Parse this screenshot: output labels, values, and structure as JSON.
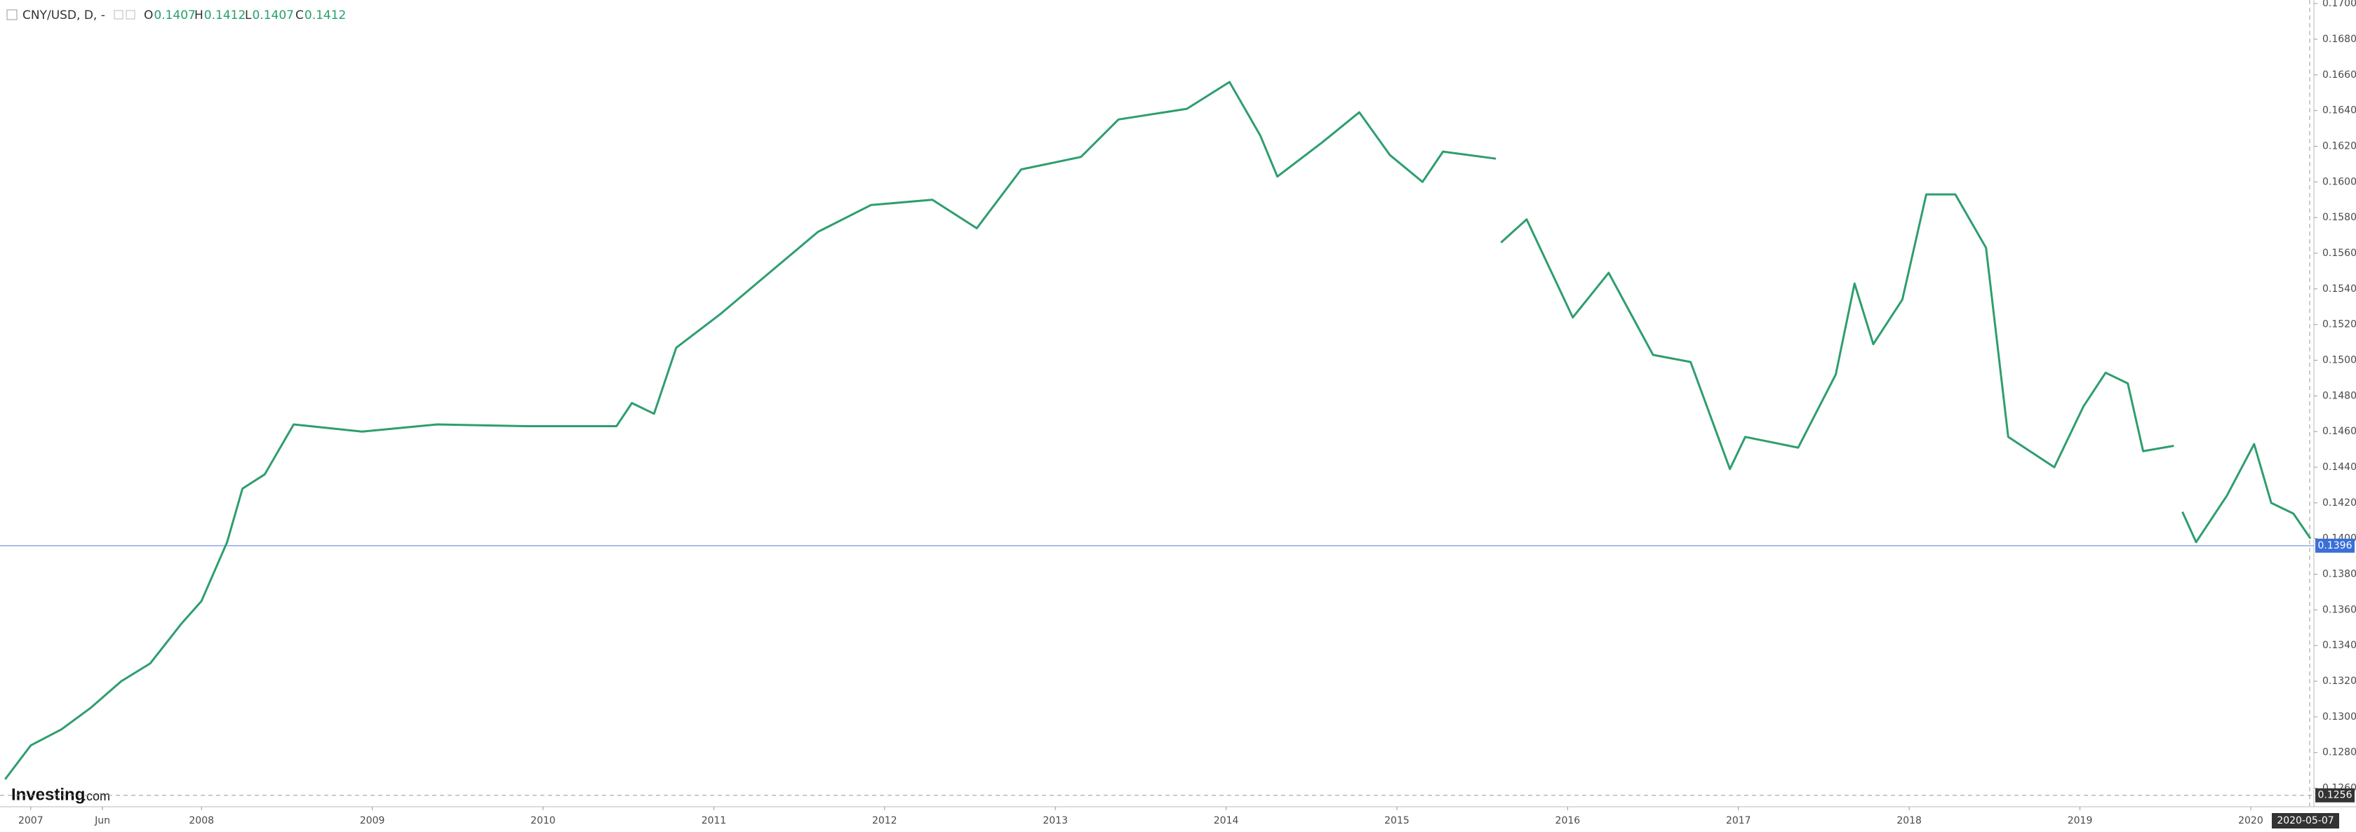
{
  "chart_data": {
    "type": "line",
    "title": "CNY/USD, D, -",
    "ohlc": [
      {
        "label": "O",
        "value": 0.1407
      },
      {
        "label": "H",
        "value": 0.1412
      },
      {
        "label": "L",
        "value": 0.1407
      },
      {
        "label": "C",
        "value": 0.1412
      }
    ],
    "x": [
      2006.85,
      2007.0,
      2007.18,
      2007.35,
      2007.53,
      2007.7,
      2007.88,
      2008.0,
      2008.15,
      2008.24,
      2008.37,
      2008.54,
      2008.94,
      2009.38,
      2009.9,
      2010.43,
      2010.52,
      2010.65,
      2010.78,
      2011.04,
      2011.3,
      2011.61,
      2011.92,
      2012.28,
      2012.54,
      2012.8,
      2013.15,
      2013.37,
      2013.77,
      2014.02,
      2014.2,
      2014.3,
      2014.56,
      2014.78,
      2014.96,
      2015.15,
      2015.27,
      2015.58,
      2015.6,
      2015.61,
      2015.76,
      2016.03,
      2016.24,
      2016.5,
      2016.72,
      2016.95,
      2017.04,
      2017.35,
      2017.57,
      2017.68,
      2017.79,
      2017.96,
      2018.1,
      2018.27,
      2018.45,
      2018.58,
      2018.85,
      2019.02,
      2019.15,
      2019.28,
      2019.37,
      2019.55,
      2019.57,
      2019.6,
      2019.68,
      2019.86,
      2020.02,
      2020.12,
      2020.25,
      2020.35
    ],
    "series": [
      {
        "name": "CNY/USD",
        "color": "#2e9e6e",
        "values": [
          0.1265,
          0.1284,
          0.1293,
          0.1305,
          0.132,
          0.133,
          0.1352,
          0.1365,
          0.1398,
          0.1428,
          0.1436,
          0.1464,
          0.146,
          0.1464,
          0.1463,
          0.1463,
          0.1476,
          0.147,
          0.1507,
          0.1526,
          0.1547,
          0.1572,
          0.1587,
          0.159,
          0.1574,
          0.1607,
          0.1614,
          0.1635,
          0.1641,
          0.1656,
          0.1626,
          0.1603,
          0.1622,
          0.1639,
          0.1615,
          0.16,
          0.1617,
          0.1613,
          null,
          0.1566,
          0.1579,
          0.1524,
          0.1549,
          0.1503,
          0.1499,
          0.1439,
          0.1457,
          0.1451,
          0.1492,
          0.1543,
          0.1509,
          0.1534,
          0.1593,
          0.1593,
          0.1563,
          0.1457,
          0.144,
          0.1474,
          0.1493,
          0.1487,
          0.1449,
          0.1452,
          null,
          0.1415,
          0.1398,
          0.1424,
          0.1453,
          0.142,
          0.1414,
          0.14
        ]
      }
    ],
    "xlim": [
      2006.82,
      2020.37
    ],
    "ylim": [
      0.125,
      0.1702
    ],
    "xticks": [
      2007,
      {
        "value": 2007.42,
        "label": "Jun"
      },
      2008,
      2009,
      2010,
      2011,
      2012,
      2013,
      2014,
      2015,
      2016,
      2017,
      2018,
      2019,
      2020
    ],
    "yticks": [
      {
        "value": 0.126,
        "label": "0.1260"
      },
      {
        "value": 0.128,
        "label": "0.1280"
      },
      {
        "value": 0.13,
        "label": "0.1300"
      },
      {
        "value": 0.132,
        "label": "0.1320"
      },
      {
        "value": 0.134,
        "label": "0.1340"
      },
      {
        "value": 0.136,
        "label": "0.1360"
      },
      {
        "value": 0.138,
        "label": "0.1380"
      },
      {
        "value": 0.14,
        "label": "0.1400"
      },
      {
        "value": 0.142,
        "label": "0.1420"
      },
      {
        "value": 0.144,
        "label": "0.1440"
      },
      {
        "value": 0.146,
        "label": "0.1460"
      },
      {
        "value": 0.148,
        "label": "0.1480"
      },
      {
        "value": 0.15,
        "label": "0.1500"
      },
      {
        "value": 0.152,
        "label": "0.1520"
      },
      {
        "value": 0.154,
        "label": "0.1540"
      },
      {
        "value": 0.156,
        "label": "0.1560"
      },
      {
        "value": 0.158,
        "label": "0.1580"
      },
      {
        "value": 0.16,
        "label": "0.1600"
      },
      {
        "value": 0.162,
        "label": "0.1620"
      },
      {
        "value": 0.164,
        "label": "0.1640"
      },
      {
        "value": 0.166,
        "label": "0.1660"
      },
      {
        "value": 0.168,
        "label": "0.1680"
      },
      {
        "value": 0.17,
        "label": "0.1700"
      }
    ],
    "last_price": 0.1396,
    "last_price_color": "#3b6fd8",
    "low_marker": 0.1256,
    "crosshair_date": "2020-05-07",
    "logo": {
      "brand": "Investing",
      "suffix": ".com"
    }
  }
}
